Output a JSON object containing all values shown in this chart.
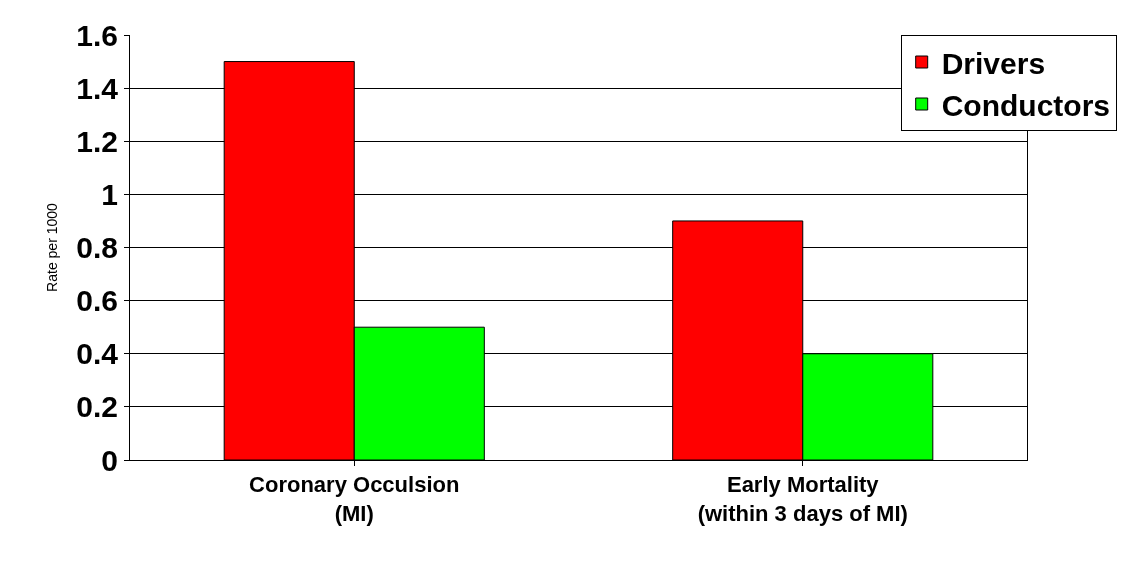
{
  "chart_data": {
    "type": "bar",
    "ylabel": "Rate per 1000",
    "categories": [
      "Coronary Occulsion\n(MI)",
      "Early Mortality\n(within 3 days of MI)"
    ],
    "series": [
      {
        "name": "Drivers",
        "color": "#ff0000",
        "values": [
          1.5,
          0.9
        ]
      },
      {
        "name": "Conductors",
        "color": "#00ff00",
        "values": [
          0.5,
          0.4
        ]
      }
    ],
    "ylim": [
      0,
      1.6
    ],
    "yticks": [
      0,
      0.2,
      0.4,
      0.6,
      0.8,
      1,
      1.2,
      1.4,
      1.6
    ],
    "grid": "y",
    "legend": "top right"
  }
}
